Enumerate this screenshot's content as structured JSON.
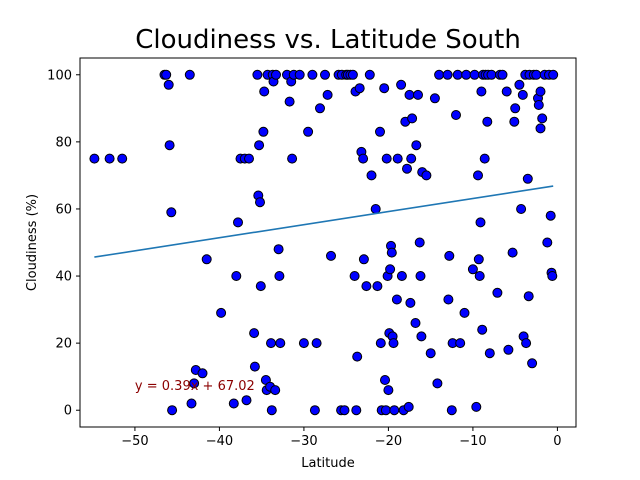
{
  "chart_data": {
    "type": "scatter",
    "title": "Cloudiness vs. Latitude South",
    "xlabel": "Latitude",
    "ylabel": "Cloudiness (%)",
    "xlim": [
      -56.5,
      2.2
    ],
    "ylim": [
      -5,
      105
    ],
    "xticks": [
      -50,
      -40,
      -30,
      -20,
      -10,
      0
    ],
    "yticks": [
      0,
      20,
      40,
      60,
      80,
      100
    ],
    "grid": false,
    "marker_color": "#0000ff",
    "marker_edge": "#000000",
    "line_color": "#1f77b4",
    "annotation_color": "#8b0000",
    "regression": {
      "equation": "y = 0.39x + 67.02",
      "slope": 0.39,
      "intercept": 67.02,
      "x_range": [
        -54.8,
        -0.5
      ],
      "label_at": [
        -50,
        6
      ]
    },
    "points": [
      [
        -54.8,
        75
      ],
      [
        -53,
        75
      ],
      [
        -51.5,
        75
      ],
      [
        -46.5,
        100
      ],
      [
        -46.3,
        100
      ],
      [
        -46,
        97
      ],
      [
        -45.9,
        79
      ],
      [
        -45.7,
        59
      ],
      [
        -45.6,
        0
      ],
      [
        -43.5,
        100
      ],
      [
        -43.3,
        2
      ],
      [
        -43,
        8
      ],
      [
        -42.8,
        12
      ],
      [
        -42,
        11
      ],
      [
        -41.5,
        45
      ],
      [
        -39.8,
        29
      ],
      [
        -38.3,
        2
      ],
      [
        -38,
        40
      ],
      [
        -37.8,
        56
      ],
      [
        -37.5,
        75
      ],
      [
        -37,
        75
      ],
      [
        -36.8,
        3
      ],
      [
        -36.5,
        75
      ],
      [
        -35.9,
        23
      ],
      [
        -35.8,
        13
      ],
      [
        -35.5,
        100
      ],
      [
        -35.4,
        64
      ],
      [
        -35.3,
        79
      ],
      [
        -35.2,
        62
      ],
      [
        -35.1,
        37
      ],
      [
        -34.8,
        83
      ],
      [
        -34.7,
        95
      ],
      [
        -34.5,
        9
      ],
      [
        -34.4,
        6
      ],
      [
        -34.3,
        100
      ],
      [
        -34,
        7
      ],
      [
        -33.9,
        20
      ],
      [
        -33.8,
        0
      ],
      [
        -33.7,
        100
      ],
      [
        -33.6,
        98
      ],
      [
        -33.4,
        6
      ],
      [
        -33.3,
        100
      ],
      [
        -33,
        48
      ],
      [
        -32.9,
        40
      ],
      [
        -32.8,
        20
      ],
      [
        -32,
        100
      ],
      [
        -31.7,
        92
      ],
      [
        -31.5,
        98
      ],
      [
        -31.4,
        75
      ],
      [
        -31.2,
        100
      ],
      [
        -30.5,
        100
      ],
      [
        -30,
        20
      ],
      [
        -29.5,
        83
      ],
      [
        -29,
        100
      ],
      [
        -28.7,
        0
      ],
      [
        -28.5,
        20
      ],
      [
        -28.1,
        90
      ],
      [
        -27.5,
        100
      ],
      [
        -27.2,
        94
      ],
      [
        -26.8,
        46
      ],
      [
        -25.9,
        100
      ],
      [
        -25.6,
        0
      ],
      [
        -25.5,
        100
      ],
      [
        -25.2,
        0
      ],
      [
        -25,
        100
      ],
      [
        -24.8,
        100
      ],
      [
        -24.5,
        100
      ],
      [
        -24.2,
        100
      ],
      [
        -24,
        40
      ],
      [
        -23.9,
        95
      ],
      [
        -23.8,
        0
      ],
      [
        -23.7,
        16
      ],
      [
        -23.4,
        96
      ],
      [
        -23.2,
        77
      ],
      [
        -23,
        75
      ],
      [
        -22.9,
        45
      ],
      [
        -22.6,
        37
      ],
      [
        -22.2,
        100
      ],
      [
        -22,
        70
      ],
      [
        -21.5,
        60
      ],
      [
        -21.3,
        37
      ],
      [
        -21,
        83
      ],
      [
        -20.9,
        20
      ],
      [
        -20.8,
        0
      ],
      [
        -20.5,
        96
      ],
      [
        -20.4,
        9
      ],
      [
        -20.3,
        0
      ],
      [
        -20.2,
        75
      ],
      [
        -20.1,
        40
      ],
      [
        -20,
        6
      ],
      [
        -19.9,
        23
      ],
      [
        -19.8,
        42
      ],
      [
        -19.7,
        49
      ],
      [
        -19.6,
        47
      ],
      [
        -19.5,
        22
      ],
      [
        -19.4,
        20
      ],
      [
        -19.3,
        0
      ],
      [
        -19,
        33
      ],
      [
        -18.9,
        75
      ],
      [
        -18.5,
        97
      ],
      [
        -18.4,
        40
      ],
      [
        -18.2,
        0
      ],
      [
        -18,
        86
      ],
      [
        -17.8,
        72
      ],
      [
        -17.6,
        1
      ],
      [
        -17.5,
        94
      ],
      [
        -17.4,
        32
      ],
      [
        -17.3,
        75
      ],
      [
        -17.2,
        87
      ],
      [
        -16.8,
        26
      ],
      [
        -16.7,
        79
      ],
      [
        -16.5,
        94
      ],
      [
        -16.3,
        50
      ],
      [
        -16.2,
        40
      ],
      [
        -16.1,
        22
      ],
      [
        -16,
        71
      ],
      [
        -15.5,
        70
      ],
      [
        -15,
        17
      ],
      [
        -14.5,
        93
      ],
      [
        -14.2,
        8
      ],
      [
        -14,
        100
      ],
      [
        -13,
        100
      ],
      [
        -12.9,
        33
      ],
      [
        -12.8,
        46
      ],
      [
        -12.5,
        0
      ],
      [
        -12.4,
        20
      ],
      [
        -12,
        88
      ],
      [
        -11.8,
        100
      ],
      [
        -11.5,
        20
      ],
      [
        -11,
        29
      ],
      [
        -10.8,
        100
      ],
      [
        -10,
        42
      ],
      [
        -9.8,
        100
      ],
      [
        -9.6,
        1
      ],
      [
        -9.4,
        70
      ],
      [
        -9.3,
        45
      ],
      [
        -9.2,
        40
      ],
      [
        -9.1,
        56
      ],
      [
        -9,
        95
      ],
      [
        -8.9,
        24
      ],
      [
        -8.8,
        100
      ],
      [
        -8.6,
        75
      ],
      [
        -8.5,
        100
      ],
      [
        -8.3,
        86
      ],
      [
        -8.2,
        100
      ],
      [
        -8,
        17
      ],
      [
        -7.8,
        100
      ],
      [
        -7.1,
        35
      ],
      [
        -6.8,
        100
      ],
      [
        -6.5,
        100
      ],
      [
        -6,
        95
      ],
      [
        -5.8,
        18
      ],
      [
        -5.3,
        47
      ],
      [
        -5.1,
        86
      ],
      [
        -5,
        90
      ],
      [
        -4.5,
        97
      ],
      [
        -4.3,
        60
      ],
      [
        -4.1,
        94
      ],
      [
        -4,
        22
      ],
      [
        -3.8,
        100
      ],
      [
        -3.7,
        20
      ],
      [
        -3.5,
        69
      ],
      [
        -3.4,
        34
      ],
      [
        -3.3,
        100
      ],
      [
        -3,
        14
      ],
      [
        -2.8,
        100
      ],
      [
        -2.5,
        100
      ],
      [
        -2.3,
        93
      ],
      [
        -2.2,
        91
      ],
      [
        -2,
        84
      ],
      [
        -2,
        95
      ],
      [
        -1.8,
        87
      ],
      [
        -1.5,
        100
      ],
      [
        -1.2,
        50
      ],
      [
        -1,
        100
      ],
      [
        -0.8,
        58
      ],
      [
        -0.7,
        41
      ],
      [
        -0.6,
        40
      ],
      [
        -0.5,
        100
      ]
    ]
  }
}
